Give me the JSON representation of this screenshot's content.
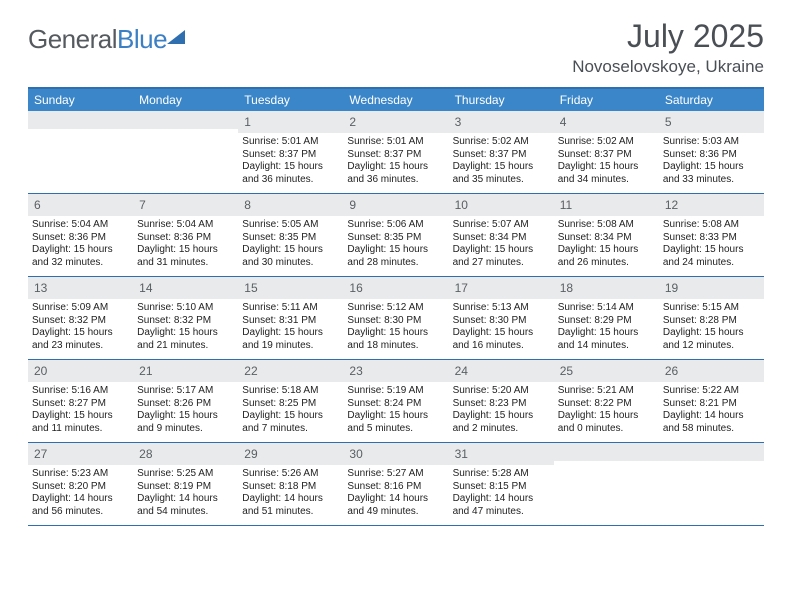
{
  "logo": {
    "word1": "General",
    "word2": "Blue"
  },
  "title": "July 2025",
  "location": "Novoselovskoye, Ukraine",
  "colors": {
    "header_bar": "#3b86c8",
    "border": "#2f6fb0",
    "daynum_bg": "#e9eaeb",
    "text_dark": "#222222",
    "text_muted": "#5a5f64"
  },
  "day_headers": [
    "Sunday",
    "Monday",
    "Tuesday",
    "Wednesday",
    "Thursday",
    "Friday",
    "Saturday"
  ],
  "weeks": [
    [
      {
        "blank": true
      },
      {
        "blank": true
      },
      {
        "n": "1",
        "sunrise": "5:01 AM",
        "sunset": "8:37 PM",
        "daylight": "15 hours and 36 minutes."
      },
      {
        "n": "2",
        "sunrise": "5:01 AM",
        "sunset": "8:37 PM",
        "daylight": "15 hours and 36 minutes."
      },
      {
        "n": "3",
        "sunrise": "5:02 AM",
        "sunset": "8:37 PM",
        "daylight": "15 hours and 35 minutes."
      },
      {
        "n": "4",
        "sunrise": "5:02 AM",
        "sunset": "8:37 PM",
        "daylight": "15 hours and 34 minutes."
      },
      {
        "n": "5",
        "sunrise": "5:03 AM",
        "sunset": "8:36 PM",
        "daylight": "15 hours and 33 minutes."
      }
    ],
    [
      {
        "n": "6",
        "sunrise": "5:04 AM",
        "sunset": "8:36 PM",
        "daylight": "15 hours and 32 minutes."
      },
      {
        "n": "7",
        "sunrise": "5:04 AM",
        "sunset": "8:36 PM",
        "daylight": "15 hours and 31 minutes."
      },
      {
        "n": "8",
        "sunrise": "5:05 AM",
        "sunset": "8:35 PM",
        "daylight": "15 hours and 30 minutes."
      },
      {
        "n": "9",
        "sunrise": "5:06 AM",
        "sunset": "8:35 PM",
        "daylight": "15 hours and 28 minutes."
      },
      {
        "n": "10",
        "sunrise": "5:07 AM",
        "sunset": "8:34 PM",
        "daylight": "15 hours and 27 minutes."
      },
      {
        "n": "11",
        "sunrise": "5:08 AM",
        "sunset": "8:34 PM",
        "daylight": "15 hours and 26 minutes."
      },
      {
        "n": "12",
        "sunrise": "5:08 AM",
        "sunset": "8:33 PM",
        "daylight": "15 hours and 24 minutes."
      }
    ],
    [
      {
        "n": "13",
        "sunrise": "5:09 AM",
        "sunset": "8:32 PM",
        "daylight": "15 hours and 23 minutes."
      },
      {
        "n": "14",
        "sunrise": "5:10 AM",
        "sunset": "8:32 PM",
        "daylight": "15 hours and 21 minutes."
      },
      {
        "n": "15",
        "sunrise": "5:11 AM",
        "sunset": "8:31 PM",
        "daylight": "15 hours and 19 minutes."
      },
      {
        "n": "16",
        "sunrise": "5:12 AM",
        "sunset": "8:30 PM",
        "daylight": "15 hours and 18 minutes."
      },
      {
        "n": "17",
        "sunrise": "5:13 AM",
        "sunset": "8:30 PM",
        "daylight": "15 hours and 16 minutes."
      },
      {
        "n": "18",
        "sunrise": "5:14 AM",
        "sunset": "8:29 PM",
        "daylight": "15 hours and 14 minutes."
      },
      {
        "n": "19",
        "sunrise": "5:15 AM",
        "sunset": "8:28 PM",
        "daylight": "15 hours and 12 minutes."
      }
    ],
    [
      {
        "n": "20",
        "sunrise": "5:16 AM",
        "sunset": "8:27 PM",
        "daylight": "15 hours and 11 minutes."
      },
      {
        "n": "21",
        "sunrise": "5:17 AM",
        "sunset": "8:26 PM",
        "daylight": "15 hours and 9 minutes."
      },
      {
        "n": "22",
        "sunrise": "5:18 AM",
        "sunset": "8:25 PM",
        "daylight": "15 hours and 7 minutes."
      },
      {
        "n": "23",
        "sunrise": "5:19 AM",
        "sunset": "8:24 PM",
        "daylight": "15 hours and 5 minutes."
      },
      {
        "n": "24",
        "sunrise": "5:20 AM",
        "sunset": "8:23 PM",
        "daylight": "15 hours and 2 minutes."
      },
      {
        "n": "25",
        "sunrise": "5:21 AM",
        "sunset": "8:22 PM",
        "daylight": "15 hours and 0 minutes."
      },
      {
        "n": "26",
        "sunrise": "5:22 AM",
        "sunset": "8:21 PM",
        "daylight": "14 hours and 58 minutes."
      }
    ],
    [
      {
        "n": "27",
        "sunrise": "5:23 AM",
        "sunset": "8:20 PM",
        "daylight": "14 hours and 56 minutes."
      },
      {
        "n": "28",
        "sunrise": "5:25 AM",
        "sunset": "8:19 PM",
        "daylight": "14 hours and 54 minutes."
      },
      {
        "n": "29",
        "sunrise": "5:26 AM",
        "sunset": "8:18 PM",
        "daylight": "14 hours and 51 minutes."
      },
      {
        "n": "30",
        "sunrise": "5:27 AM",
        "sunset": "8:16 PM",
        "daylight": "14 hours and 49 minutes."
      },
      {
        "n": "31",
        "sunrise": "5:28 AM",
        "sunset": "8:15 PM",
        "daylight": "14 hours and 47 minutes."
      },
      {
        "blank": true
      },
      {
        "blank": true
      }
    ]
  ]
}
